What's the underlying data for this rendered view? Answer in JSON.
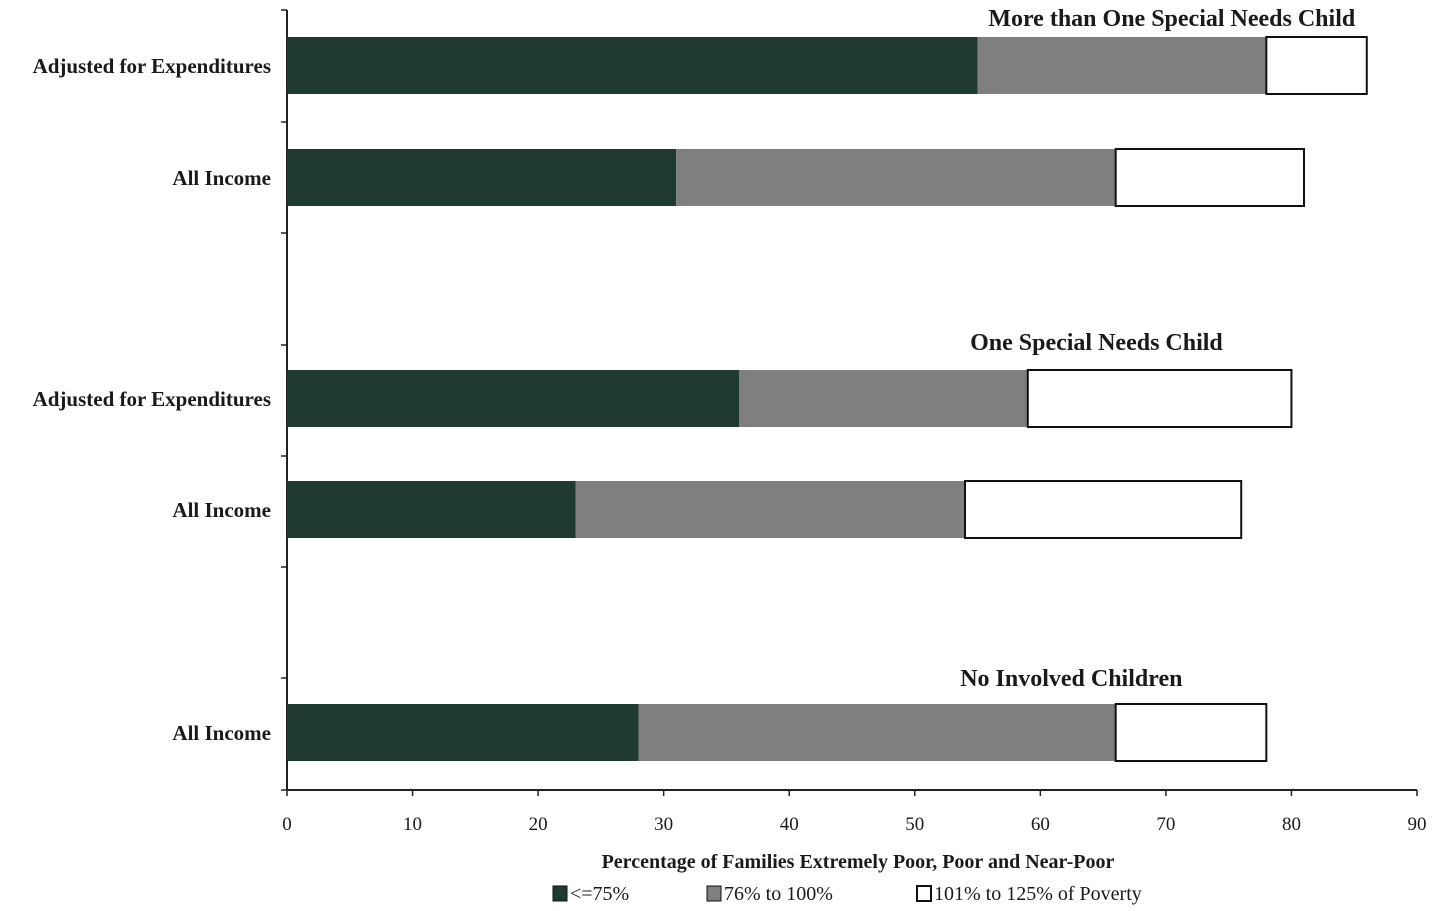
{
  "chart_data": {
    "type": "bar",
    "orientation": "horizontal",
    "stacked": true,
    "xlabel": "Percentage of Families Extremely Poor, Poor and Near-Poor",
    "xlim": [
      0,
      90
    ],
    "xticks": [
      "0",
      "10",
      "20",
      "30",
      "40",
      "50",
      "60",
      "70",
      "80",
      "90"
    ],
    "grid": false,
    "legend_position": "bottom",
    "series": [
      {
        "name": "<=75%",
        "color": "#1f3a2e"
      },
      {
        "name": "76% to 100%",
        "color": "#7f7f7f"
      },
      {
        "name": "101% to 125% of Poverty",
        "color": "#ffffff"
      }
    ],
    "groups": [
      {
        "title": "More than One Special Needs Child",
        "bars": [
          {
            "label": "Adjusted for Expenditures",
            "values": [
              55,
              23,
              8
            ]
          },
          {
            "label": "All Income",
            "values": [
              31,
              35,
              15
            ]
          }
        ]
      },
      {
        "title": "One Special Needs Child",
        "bars": [
          {
            "label": "Adjusted for Expenditures",
            "values": [
              36,
              23,
              21
            ]
          },
          {
            "label": "All Income",
            "values": [
              23,
              31,
              22
            ]
          }
        ]
      },
      {
        "title": "No Involved Children",
        "bars": [
          {
            "label": "All Income",
            "values": [
              28,
              38,
              12
            ]
          }
        ]
      }
    ]
  }
}
